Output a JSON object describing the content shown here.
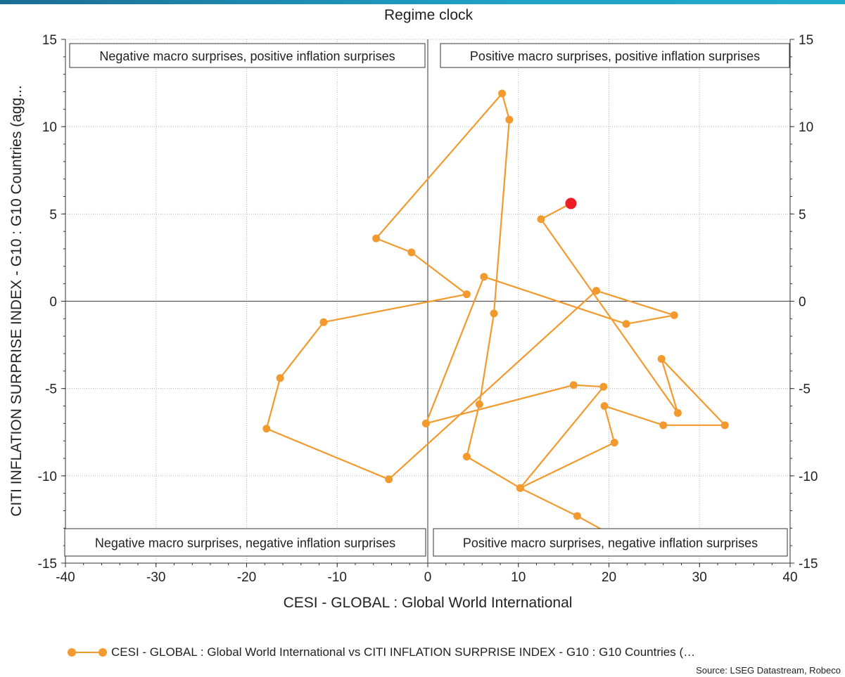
{
  "title": "Regime clock",
  "source": "Source: LSEG Datastream, Robeco",
  "colors": {
    "series": "#F29A2E",
    "latest": "#EE1C25",
    "topbar": "#1c8db5"
  },
  "chart_data": {
    "type": "scatter",
    "xlabel": "CESI - GLOBAL : Global World International",
    "ylabel": "CITI INFLATION SURPRISE INDEX - G10 : G10 Countries (agg...",
    "xlim": [
      -40,
      40
    ],
    "ylim": [
      -15,
      15
    ],
    "xticks": [
      -40,
      -30,
      -20,
      -10,
      0,
      10,
      20,
      30,
      40
    ],
    "yticks": [
      -15,
      -10,
      -5,
      0,
      5,
      10,
      15
    ],
    "grid": true,
    "quadrant_labels": {
      "top_left": "Negative macro surprises, positive inflation surprises",
      "top_right": "Positive macro surprises, positive inflation surprises",
      "bottom_left": "Negative macro surprises, negative inflation surprises",
      "bottom_right": "Positive macro surprises, negative inflation surprises"
    },
    "legend": {
      "label": "CESI - GLOBAL : Global World International vs CITI INFLATION SURPRISE INDEX - G10 : G10 Countries (…",
      "position": "bottom"
    },
    "series": [
      {
        "name": "CESI - GLOBAL : Global World International vs CITI INFLATION SURPRISE INDEX - G10 : G10 Countries (…",
        "points": [
          [
            19.3,
            -13.1
          ],
          [
            16.5,
            -12.3
          ],
          [
            10.2,
            -10.7
          ],
          [
            4.3,
            -8.9
          ],
          [
            5.7,
            -5.9
          ],
          [
            7.3,
            -0.7
          ],
          [
            9.0,
            10.4
          ],
          [
            8.2,
            11.9
          ],
          [
            -5.7,
            3.6
          ],
          [
            -1.8,
            2.8
          ],
          [
            4.3,
            0.4
          ],
          [
            -11.5,
            -1.2
          ],
          [
            -16.3,
            -4.4
          ],
          [
            -17.8,
            -7.3
          ],
          [
            -4.3,
            -10.2
          ],
          [
            18.6,
            0.6
          ],
          [
            27.2,
            -0.8
          ],
          [
            21.9,
            -1.3
          ],
          [
            6.2,
            1.4
          ],
          [
            -0.2,
            -7.0
          ],
          [
            -0.2,
            -7.0
          ],
          [
            16.1,
            -4.8
          ],
          [
            19.4,
            -4.9
          ],
          [
            10.2,
            -10.7
          ],
          [
            20.6,
            -8.1
          ],
          [
            19.5,
            -6.0
          ],
          [
            26.0,
            -7.1
          ],
          [
            32.8,
            -7.1
          ],
          [
            25.8,
            -3.3
          ],
          [
            27.6,
            -6.4
          ],
          [
            12.5,
            4.7
          ],
          [
            15.8,
            5.6
          ]
        ]
      }
    ],
    "latest_point": [
      15.8,
      5.6
    ]
  }
}
